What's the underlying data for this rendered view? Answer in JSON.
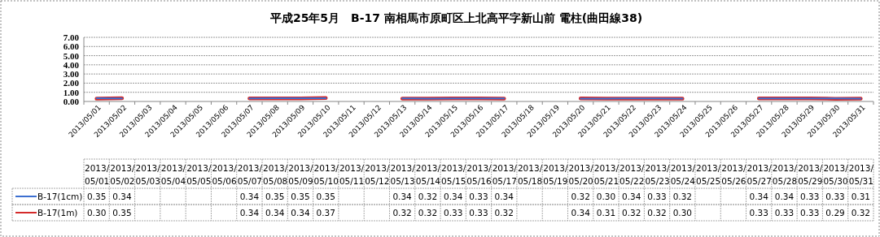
{
  "chart_data": {
    "type": "line",
    "title": "平成25年5月　B-17 南相馬市原町区上北高平字新山前 電柱(曲田線38)",
    "categories": [
      "2013/05/01",
      "2013/05/02",
      "2013/05/03",
      "2013/05/04",
      "2013/05/05",
      "2013/05/06",
      "2013/05/07",
      "2013/05/08",
      "2013/05/09",
      "2013/05/10",
      "2013/05/11",
      "2013/05/12",
      "2013/05/13",
      "2013/05/14",
      "2013/05/15",
      "2013/05/16",
      "2013/05/17",
      "2013/05/18",
      "2013/05/19",
      "2013/05/20",
      "2013/05/21",
      "2013/05/22",
      "2013/05/23",
      "2013/05/24",
      "2013/05/25",
      "2013/05/26",
      "2013/05/27",
      "2013/05/28",
      "2013/05/29",
      "2013/05/30",
      "2013/05/31"
    ],
    "series": [
      {
        "name": "B-17(1cm)",
        "color": "#3c6fd0",
        "values": [
          0.35,
          0.34,
          null,
          null,
          null,
          null,
          0.34,
          0.35,
          0.35,
          0.35,
          null,
          null,
          0.34,
          0.32,
          0.34,
          0.33,
          0.34,
          null,
          null,
          0.32,
          0.3,
          0.34,
          0.33,
          0.32,
          null,
          null,
          0.34,
          0.34,
          0.33,
          0.33,
          0.31
        ],
        "value_labels": [
          "0.35",
          "0.34",
          null,
          null,
          null,
          null,
          "0.34",
          "0.35",
          "0.35",
          "0.35",
          null,
          null,
          "0.34",
          "0.32",
          "0.34",
          "0.33",
          "0.34",
          null,
          null,
          "0.32",
          "0.30",
          "0.34",
          "0.33",
          "0.32",
          null,
          null,
          "0.34",
          "0.34",
          "0.33",
          "0.33",
          "0.31"
        ]
      },
      {
        "name": "B-17(1m)",
        "color": "#d42a2a",
        "values": [
          0.3,
          0.35,
          null,
          null,
          null,
          null,
          0.34,
          0.34,
          0.34,
          0.37,
          null,
          null,
          0.32,
          0.32,
          0.33,
          0.33,
          0.32,
          null,
          null,
          0.34,
          0.31,
          0.32,
          0.32,
          0.3,
          null,
          null,
          0.33,
          0.33,
          0.33,
          0.29,
          0.32
        ],
        "value_labels": [
          "0.30",
          "0.35",
          null,
          null,
          null,
          null,
          "0.34",
          "0.34",
          "0.34",
          "0.37",
          null,
          null,
          "0.32",
          "0.32",
          "0.33",
          "0.33",
          "0.32",
          null,
          null,
          "0.34",
          "0.31",
          "0.32",
          "0.32",
          "0.30",
          null,
          null,
          "0.33",
          "0.33",
          "0.33",
          "0.29",
          "0.32"
        ]
      }
    ],
    "ylim": [
      0,
      7
    ],
    "yticks": [
      {
        "value": 0,
        "label": "0.00"
      },
      {
        "value": 1,
        "label": "1.00"
      },
      {
        "value": 2,
        "label": "2.00"
      },
      {
        "value": 3,
        "label": "3.00"
      },
      {
        "value": 4,
        "label": "4.00"
      },
      {
        "value": 5,
        "label": "5.00"
      },
      {
        "value": 6,
        "label": "6.00"
      },
      {
        "value": 7,
        "label": "7.00"
      }
    ],
    "grid": "y",
    "legend": "bottom",
    "marker": "none",
    "line_style": "solid"
  }
}
